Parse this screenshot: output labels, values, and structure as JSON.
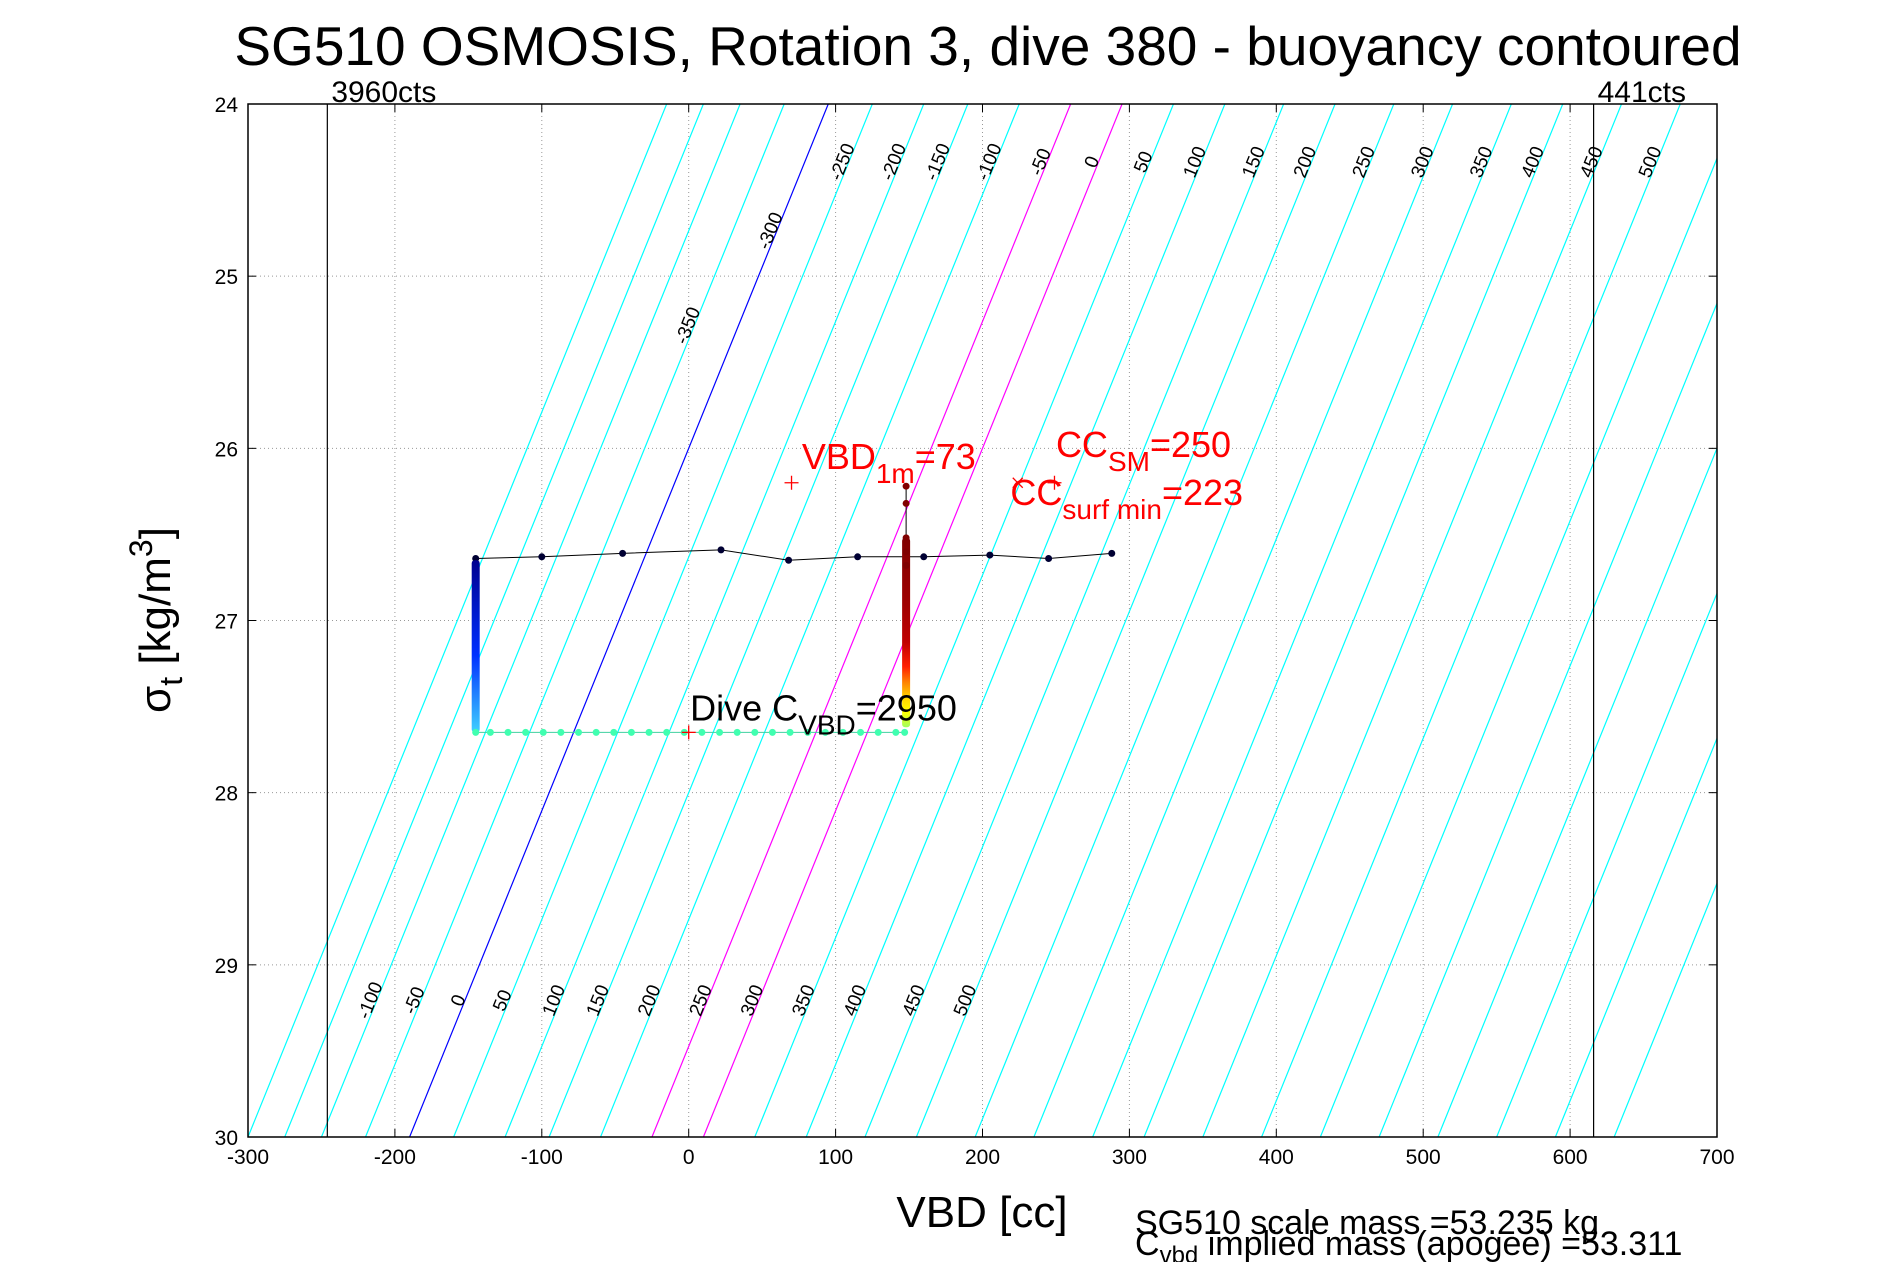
{
  "chart_data": {
    "type": "scatter",
    "title": "SG510 OSMOSIS, Rotation 3, dive 380 - buoyancy contoured",
    "xlabel": "VBD [cc]",
    "ylabel_main": "σ",
    "ylabel_sub": "t",
    "ylabel_unit": " [kg/m",
    "ylabel_sup": "3",
    "ylabel_close": "]",
    "xlim": [
      -300,
      700
    ],
    "ylim": [
      24,
      30
    ],
    "y_reversed": true,
    "grid": true,
    "x_ticks": [
      -300,
      -200,
      -100,
      0,
      100,
      200,
      300,
      400,
      500,
      600,
      700
    ],
    "y_ticks": [
      24,
      25,
      26,
      27,
      28,
      29,
      30
    ],
    "vlines": [
      {
        "x": -246,
        "label": "3960cts"
      },
      {
        "x": 616,
        "label": "441cts"
      }
    ],
    "contours": {
      "slope": 0.0231,
      "top_labels": [
        -350,
        -300,
        -250,
        -200,
        -150,
        -100,
        -50,
        0,
        50,
        100,
        150,
        200,
        250,
        300,
        350,
        400,
        450,
        500
      ],
      "bottom_labels": [
        -100,
        -50,
        0,
        50,
        100,
        150,
        200,
        250,
        300,
        350,
        400,
        450,
        500
      ],
      "zero_color": "#0000ff",
      "highlight_color": "#ff00ff",
      "default_color": "#00ffff",
      "lines": [
        {
          "x_at_30": -300,
          "label_top": null,
          "label_bottom": null
        },
        {
          "x_at_30": -275,
          "label_top": null,
          "label_bottom": null
        },
        {
          "x_at_30": -250,
          "label_top": null,
          "label_bottom": -100
        },
        {
          "x_at_30": -220,
          "label_top": -350,
          "label_bottom": -50
        },
        {
          "x_at_30": -190,
          "label_top": -300,
          "label_bottom": 0
        },
        {
          "x_at_30": -160,
          "label_top": -250,
          "label_bottom": 50
        },
        {
          "x_at_30": -125,
          "label_top": -200,
          "label_bottom": 100
        },
        {
          "x_at_30": -95,
          "label_top": -150,
          "label_bottom": 150
        },
        {
          "x_at_30": -60,
          "label_top": -100,
          "label_bottom": 200
        },
        {
          "x_at_30": -25,
          "label_top": -50,
          "label_bottom": 250
        },
        {
          "x_at_30": 10,
          "label_top": 0,
          "label_bottom": 300
        },
        {
          "x_at_30": 45,
          "label_top": 50,
          "label_bottom": 350
        },
        {
          "x_at_30": 80,
          "label_top": 100,
          "label_bottom": 400
        },
        {
          "x_at_30": 120,
          "label_top": 150,
          "label_bottom": 450
        },
        {
          "x_at_30": 155,
          "label_top": 200,
          "label_bottom": 500
        },
        {
          "x_at_30": 195,
          "label_top": 250,
          "label_bottom": null
        },
        {
          "x_at_30": 235,
          "label_top": 300,
          "label_bottom": null
        },
        {
          "x_at_30": 275,
          "label_top": 350,
          "label_bottom": null
        },
        {
          "x_at_30": 310,
          "label_top": 400,
          "label_bottom": null
        },
        {
          "x_at_30": 350,
          "label_top": 450,
          "label_bottom": null
        },
        {
          "x_at_30": 390,
          "label_top": 500,
          "label_bottom": null
        },
        {
          "x_at_30": 430,
          "label_top": null,
          "label_bottom": null
        },
        {
          "x_at_30": 470,
          "label_top": null,
          "label_bottom": null
        },
        {
          "x_at_30": 510,
          "label_top": null,
          "label_bottom": null
        },
        {
          "x_at_30": 550,
          "label_top": null,
          "label_bottom": null
        },
        {
          "x_at_30": 590,
          "label_top": null,
          "label_bottom": null
        },
        {
          "x_at_30": 630,
          "label_top": null,
          "label_bottom": null
        }
      ],
      "zero_index": 4,
      "highlight_indices": [
        9,
        10
      ]
    },
    "upper_line": {
      "x": [
        -145,
        -100,
        -45,
        22,
        68,
        115,
        148,
        160,
        205,
        245,
        288
      ],
      "y": [
        26.64,
        26.63,
        26.61,
        26.59,
        26.65,
        26.63,
        26.63,
        26.63,
        26.62,
        26.64,
        26.61
      ],
      "color": "#000033"
    },
    "left_column": {
      "x": -145,
      "y_start": 26.65,
      "y_end": 27.65,
      "color_top": "#000090",
      "color_mid": "#0030ff",
      "color_bottom": "#40d0ff"
    },
    "bottom_row": {
      "x": [
        -145,
        -135,
        -123,
        -111,
        -99,
        -87,
        -75,
        -63,
        -51,
        -39,
        -27,
        -15,
        -3,
        9,
        21,
        33,
        45,
        57,
        69,
        81,
        93,
        105,
        117,
        129,
        141,
        147
      ],
      "y": 27.65,
      "color": "#40ffb0"
    },
    "right_column": {
      "x": 148,
      "y_start": 26.22,
      "y_end": 27.62,
      "colors": [
        "#800000",
        "#a00000",
        "#c00000",
        "#ff2000",
        "#ff8000",
        "#ffd000",
        "#ffff00",
        "#a0ff60"
      ]
    },
    "markers": [
      {
        "x": 70,
        "y": 26.2,
        "symbol": "+",
        "color": "#ff0000"
      },
      {
        "x": 224,
        "y": 26.2,
        "symbol": "x",
        "color": "#ff0000"
      },
      {
        "x": 249,
        "y": 26.2,
        "symbol": "+",
        "color": "#ff0000"
      },
      {
        "x": 0,
        "y": 27.65,
        "symbol": "+",
        "color": "#ff0000"
      }
    ],
    "annotations": [
      {
        "id": "vbd1m",
        "x": 77,
        "y": 26.12,
        "color": "#ff0000",
        "main": "VBD",
        "sub": "1m",
        "rest": "=73"
      },
      {
        "id": "ccsm",
        "x": 250,
        "y": 26.05,
        "color": "#ff0000",
        "main": "CC",
        "sub": "SM",
        "rest": "=250"
      },
      {
        "id": "ccsurf",
        "x": 219,
        "y": 26.33,
        "color": "#ff0000",
        "main": "CC",
        "sub": "surf min",
        "rest": "=223"
      },
      {
        "id": "divecvbd",
        "x": 1,
        "y": 27.58,
        "color": "#000000",
        "main": "Dive C",
        "sub": "VBD",
        "rest": "=2950"
      }
    ],
    "footer_line1": "SG510 scale mass =53.235 kg",
    "footer_line2_main": "C",
    "footer_line2_sub": "vbd",
    "footer_line2_rest": " implied mass (apogee) =53.311"
  }
}
